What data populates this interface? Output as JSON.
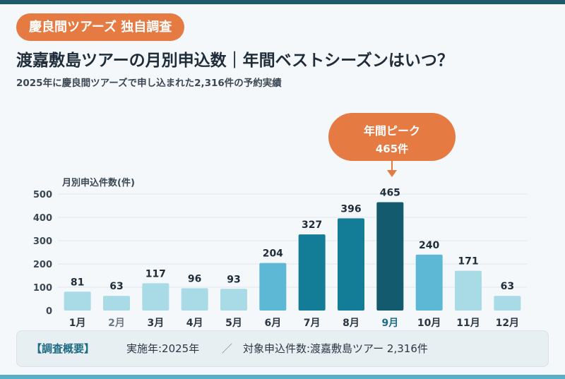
{
  "badge": "慶良間ツアーズ 独自調査",
  "title": "渡嘉敷島ツアーの月別申込数｜年間ベストシーズンはいつ？",
  "subtitle": "2025年に慶良間ツアーズで申し込まれた2,316件の予約実績",
  "peak_callout": {
    "line1": "年間ピーク",
    "line2": "465件"
  },
  "footer": {
    "label": "【調査概要】",
    "year": "実施年:2025年",
    "separator": "／",
    "target": "対象申込件数:渡嘉敷島ツアー 2,316件"
  },
  "colors": {
    "accent": "#e57a42",
    "bar_low": "#a8dbe6",
    "bar_mid": "#5cb8d4",
    "bar_high": "#137c97",
    "bar_peak": "#145a6e"
  },
  "chart_data": {
    "type": "bar",
    "ylabel": "月別申込件数(件)",
    "ylim": [
      0,
      500
    ],
    "yticks": [
      0,
      100,
      200,
      300,
      400,
      500
    ],
    "grid": true,
    "categories": [
      "1月",
      "2月",
      "3月",
      "4月",
      "5月",
      "6月",
      "7月",
      "8月",
      "9月",
      "10月",
      "11月",
      "12月"
    ],
    "values": [
      81,
      63,
      117,
      96,
      93,
      204,
      327,
      396,
      465,
      240,
      171,
      63
    ],
    "bar_tones": [
      "low",
      "low",
      "low",
      "low",
      "low",
      "mid",
      "high",
      "high",
      "peak",
      "mid",
      "low",
      "low"
    ]
  }
}
